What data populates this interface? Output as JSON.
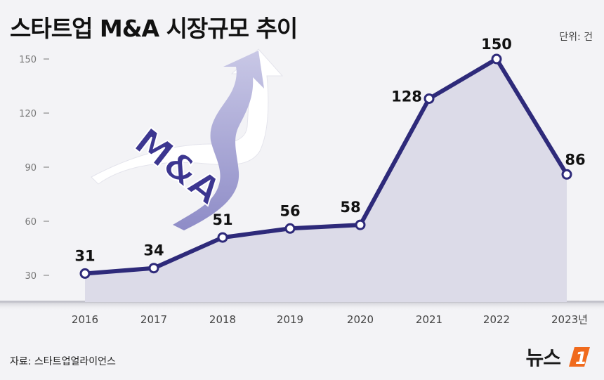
{
  "header": {
    "title": "스타트업 M&A 시장규모 추이",
    "unit": "단위: 건"
  },
  "footer": {
    "source": "자료: 스타트업얼라이언스",
    "logo_text": "뉴스",
    "logo_badge": "1"
  },
  "illustration": {
    "text": "M&A"
  },
  "colors": {
    "line": "#2e2a7a",
    "area": "#dcdbe8",
    "background": "#f3f3f6",
    "logo_accent": "#f06a1d"
  },
  "chart_data": {
    "type": "line",
    "title": "스타트업 M&A 시장규모 추이",
    "categories": [
      "2016",
      "2017",
      "2018",
      "2019",
      "2020",
      "2021",
      "2022",
      "2023년"
    ],
    "values": [
      31,
      34,
      51,
      56,
      58,
      128,
      150,
      86
    ],
    "data_labels": [
      "31",
      "34",
      "51",
      "56",
      "58",
      "128",
      "150",
      "86"
    ],
    "yticks": [
      30,
      60,
      90,
      120,
      150
    ],
    "ytick_labels": [
      "30",
      "60",
      "90",
      "120",
      "150"
    ],
    "ylim": [
      0,
      150
    ],
    "unit": "건",
    "grid": false,
    "filled_area": true
  }
}
